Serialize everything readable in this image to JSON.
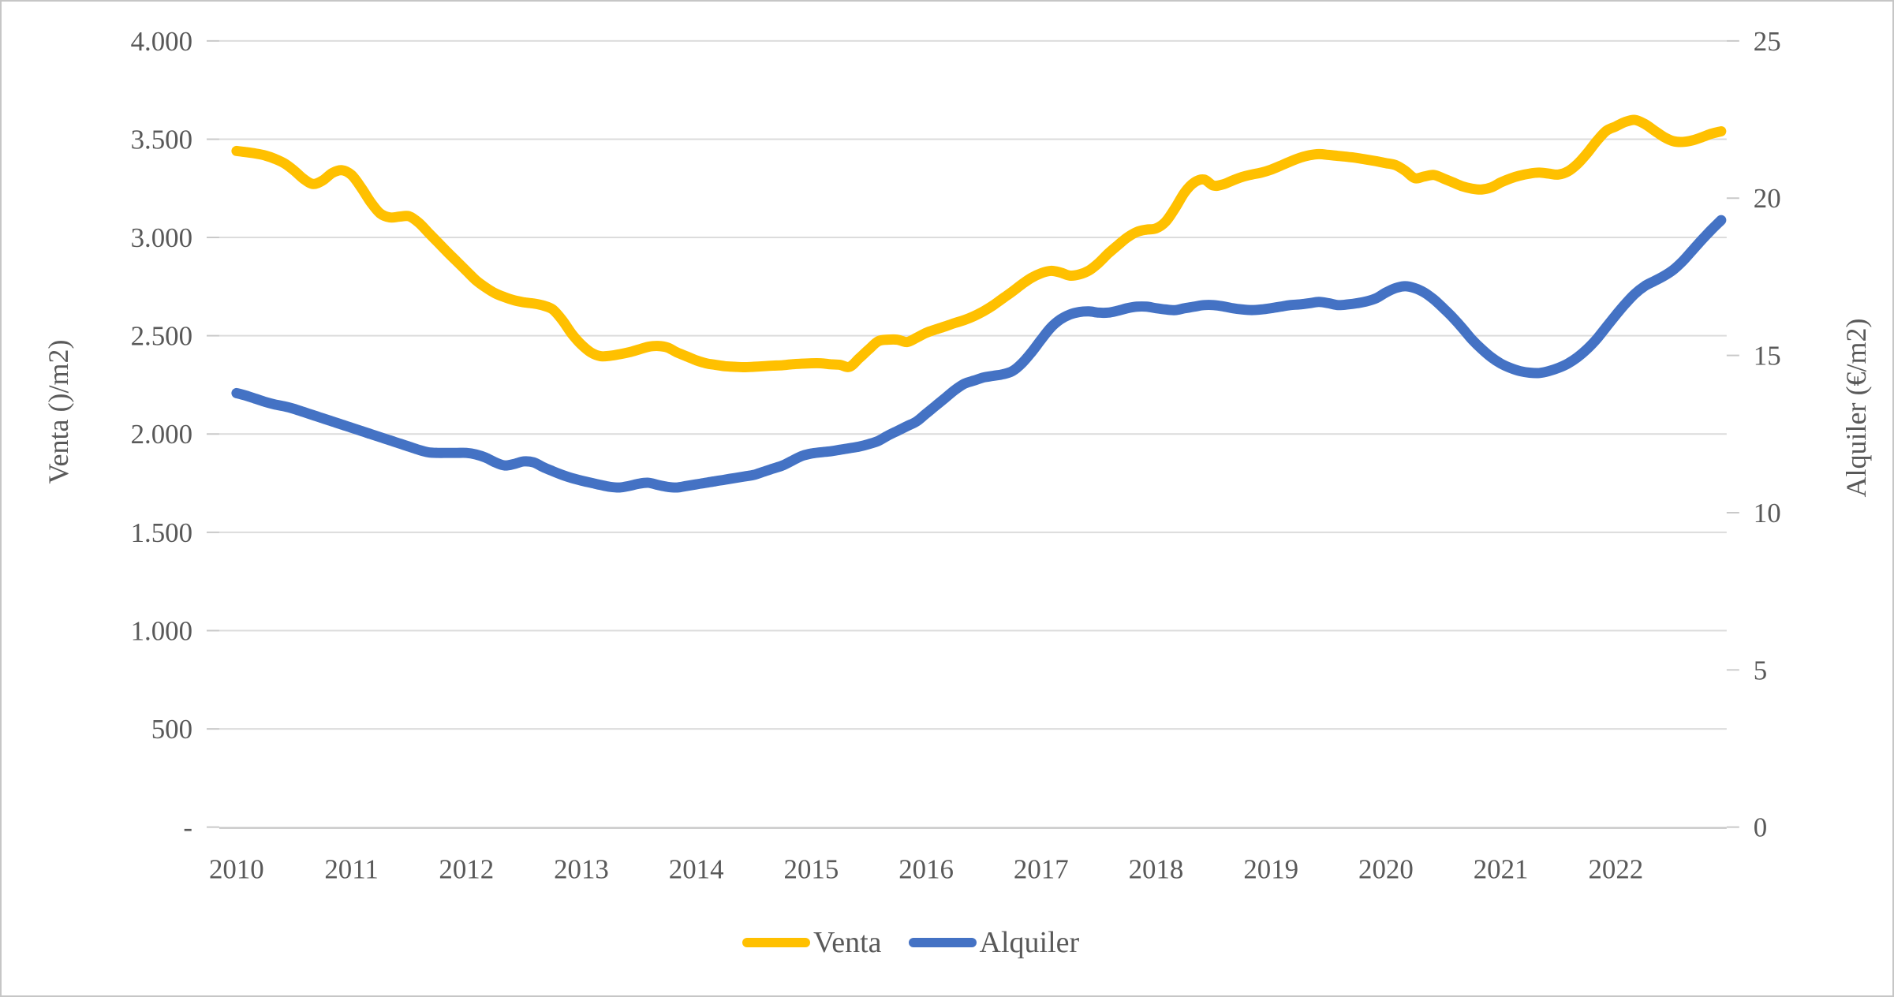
{
  "chart_data": {
    "type": "line",
    "title": "",
    "x_axis": {
      "tick_labels": [
        "2010",
        "2011",
        "2012",
        "2013",
        "2014",
        "2015",
        "2016",
        "2017",
        "2018",
        "2019",
        "2020",
        "2021",
        "2022"
      ],
      "frequency": "monthly",
      "months_per_tick": 12
    },
    "left_axis": {
      "title": "Venta ()/m2)",
      "min": 0,
      "max": 4000,
      "step": 500,
      "tick_labels": [
        "-",
        "500",
        "1.000",
        "1.500",
        "2.000",
        "2.500",
        "3.000",
        "3.500",
        "4.000"
      ]
    },
    "right_axis": {
      "title": "Alquiler (€/m2)",
      "min": 0,
      "max": 25,
      "step": 5,
      "tick_labels": [
        "0",
        "5",
        "10",
        "15",
        "20",
        "25"
      ]
    },
    "grid": "horizontal",
    "legend_position": "bottom",
    "legend": [
      {
        "label": "Venta",
        "color": "#FFC000"
      },
      {
        "label": "Alquiler",
        "color": "#4472C4"
      }
    ],
    "series": [
      {
        "name": "Venta",
        "axis": "left",
        "color": "#FFC000",
        "values": [
          3440,
          3434,
          3427,
          3417,
          3400,
          3377,
          3341,
          3298,
          3272,
          3290,
          3328,
          3342,
          3318,
          3255,
          3180,
          3122,
          3102,
          3106,
          3108,
          3076,
          3026,
          2976,
          2926,
          2878,
          2830,
          2782,
          2746,
          2716,
          2696,
          2680,
          2670,
          2664,
          2654,
          2634,
          2580,
          2510,
          2455,
          2415,
          2396,
          2398,
          2406,
          2416,
          2430,
          2444,
          2448,
          2440,
          2415,
          2395,
          2375,
          2360,
          2352,
          2345,
          2342,
          2340,
          2342,
          2345,
          2348,
          2350,
          2355,
          2358,
          2360,
          2360,
          2355,
          2352,
          2342,
          2385,
          2430,
          2472,
          2480,
          2480,
          2468,
          2490,
          2515,
          2532,
          2548,
          2565,
          2580,
          2600,
          2625,
          2655,
          2690,
          2725,
          2762,
          2795,
          2818,
          2830,
          2822,
          2806,
          2812,
          2832,
          2870,
          2918,
          2960,
          3000,
          3028,
          3040,
          3046,
          3080,
          3150,
          3230,
          3280,
          3295,
          3264,
          3270,
          3290,
          3308,
          3320,
          3330,
          3345,
          3365,
          3386,
          3405,
          3418,
          3424,
          3420,
          3415,
          3410,
          3404,
          3396,
          3388,
          3378,
          3368,
          3340,
          3302,
          3310,
          3318,
          3300,
          3280,
          3260,
          3248,
          3244,
          3255,
          3280,
          3300,
          3315,
          3325,
          3330,
          3325,
          3320,
          3336,
          3374,
          3428,
          3490,
          3542,
          3565,
          3588,
          3598,
          3578,
          3545,
          3512,
          3490,
          3486,
          3494,
          3510,
          3528,
          3540
        ]
      },
      {
        "name": "Alquiler",
        "axis": "right",
        "color": "#4472C4",
        "values": [
          13.8,
          13.72,
          13.62,
          13.52,
          13.44,
          13.38,
          13.3,
          13.2,
          13.1,
          13.0,
          12.9,
          12.8,
          12.7,
          12.6,
          12.5,
          12.4,
          12.3,
          12.2,
          12.1,
          12.0,
          11.92,
          11.9,
          11.9,
          11.9,
          11.9,
          11.85,
          11.75,
          11.6,
          11.5,
          11.55,
          11.63,
          11.6,
          11.45,
          11.32,
          11.2,
          11.1,
          11.02,
          10.95,
          10.88,
          10.82,
          10.8,
          10.85,
          10.92,
          10.95,
          10.88,
          10.82,
          10.8,
          10.85,
          10.9,
          10.95,
          11.0,
          11.05,
          11.1,
          11.15,
          11.2,
          11.3,
          11.4,
          11.5,
          11.65,
          11.8,
          11.88,
          11.92,
          11.95,
          12.0,
          12.05,
          12.1,
          12.18,
          12.28,
          12.45,
          12.6,
          12.75,
          12.9,
          13.15,
          13.4,
          13.65,
          13.9,
          14.1,
          14.2,
          14.3,
          14.35,
          14.4,
          14.5,
          14.75,
          15.1,
          15.5,
          15.88,
          16.14,
          16.3,
          16.38,
          16.4,
          16.36,
          16.36,
          16.42,
          16.5,
          16.55,
          16.55,
          16.5,
          16.46,
          16.44,
          16.5,
          16.55,
          16.6,
          16.6,
          16.56,
          16.5,
          16.46,
          16.44,
          16.46,
          16.5,
          16.55,
          16.6,
          16.62,
          16.66,
          16.7,
          16.66,
          16.6,
          16.62,
          16.66,
          16.72,
          16.82,
          17.0,
          17.14,
          17.2,
          17.14,
          17.0,
          16.78,
          16.5,
          16.2,
          15.86,
          15.5,
          15.2,
          14.94,
          14.74,
          14.6,
          14.5,
          14.45,
          14.44,
          14.5,
          14.6,
          14.74,
          14.94,
          15.2,
          15.52,
          15.9,
          16.28,
          16.64,
          16.96,
          17.2,
          17.36,
          17.52,
          17.72,
          18.0,
          18.34,
          18.68,
          19.0,
          19.3
        ]
      }
    ]
  },
  "colors": {
    "venta": "#FFC000",
    "alquiler": "#4472C4",
    "gridline": "#DCDCDC",
    "axis_line": "#C9C9C9",
    "text": "#595959",
    "background": "#FFFFFF",
    "border": "#C6C6C6"
  }
}
